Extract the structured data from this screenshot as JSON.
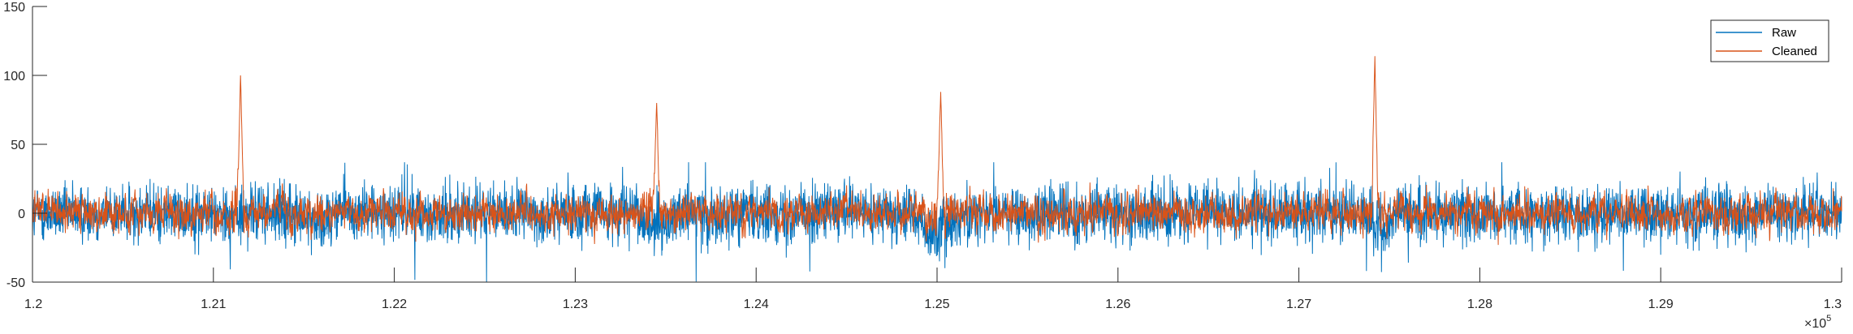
{
  "chart_data": {
    "type": "line",
    "title": "",
    "xlabel": "",
    "ylabel": "",
    "xlim": [
      120000,
      130000
    ],
    "ylim": [
      -50,
      150
    ],
    "x_exponent_label": "×10",
    "x_exponent_power": "5",
    "x_ticks": [
      {
        "value": 120000,
        "label": "1.2"
      },
      {
        "value": 121000,
        "label": "1.21"
      },
      {
        "value": 122000,
        "label": "1.22"
      },
      {
        "value": 123000,
        "label": "1.23"
      },
      {
        "value": 124000,
        "label": "1.24"
      },
      {
        "value": 125000,
        "label": "1.25"
      },
      {
        "value": 126000,
        "label": "1.26"
      },
      {
        "value": 127000,
        "label": "1.27"
      },
      {
        "value": 128000,
        "label": "1.28"
      },
      {
        "value": 129000,
        "label": "1.29"
      },
      {
        "value": 130000,
        "label": "1.3"
      }
    ],
    "y_ticks": [
      {
        "value": -50,
        "label": "-50"
      },
      {
        "value": 0,
        "label": "0"
      },
      {
        "value": 50,
        "label": "50"
      },
      {
        "value": 100,
        "label": "100"
      },
      {
        "value": 150,
        "label": "150"
      }
    ],
    "grid": false,
    "legend_position": "top-right",
    "series": [
      {
        "name": "Raw",
        "color": "#0072BD",
        "noise_amplitude": 12,
        "typical_range": [
          -35,
          35
        ],
        "events": [
          {
            "x": 121550,
            "y": -22
          },
          {
            "x": 123450,
            "y": -32
          },
          {
            "x": 125000,
            "y": -45
          },
          {
            "x": 127450,
            "y": -33
          }
        ]
      },
      {
        "name": "Cleaned",
        "color": "#D95319",
        "noise_amplitude": 9,
        "typical_range": [
          -25,
          25
        ],
        "spikes": [
          {
            "x": 121150,
            "y": 100
          },
          {
            "x": 123450,
            "y": 80
          },
          {
            "x": 125020,
            "y": 88
          },
          {
            "x": 127420,
            "y": 114
          }
        ]
      }
    ]
  }
}
